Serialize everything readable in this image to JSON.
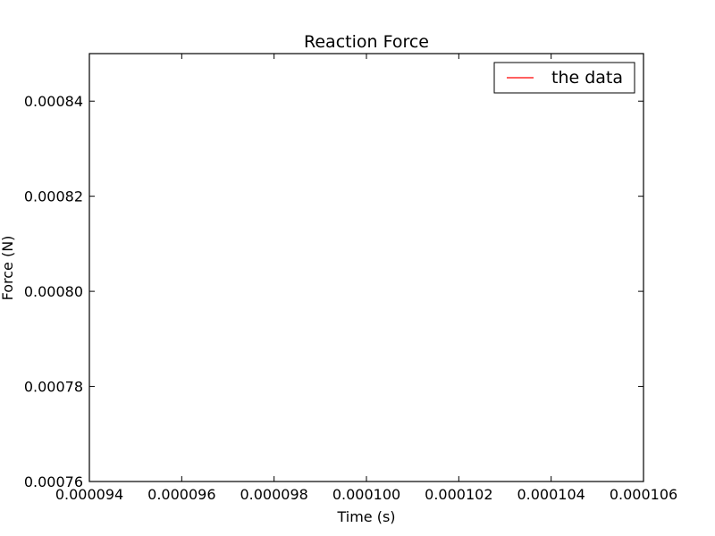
{
  "chart_data": {
    "type": "line",
    "title": "Reaction Force",
    "xlabel": "Time (s)",
    "ylabel": "Force (N)",
    "xlim": [
      9.4e-05,
      0.000106
    ],
    "ylim": [
      0.00076,
      0.00085
    ],
    "x_ticks": [
      {
        "value": 9.4e-05,
        "label": "0.000094"
      },
      {
        "value": 9.6e-05,
        "label": "0.000096"
      },
      {
        "value": 9.8e-05,
        "label": "0.000098"
      },
      {
        "value": 0.0001,
        "label": "0.000100"
      },
      {
        "value": 0.000102,
        "label": "0.000102"
      },
      {
        "value": 0.000104,
        "label": "0.000104"
      },
      {
        "value": 0.000106,
        "label": "0.000106"
      }
    ],
    "y_ticks": [
      {
        "value": 0.00076,
        "label": "0.00076"
      },
      {
        "value": 0.00078,
        "label": "0.00078"
      },
      {
        "value": 0.0008,
        "label": "0.00080"
      },
      {
        "value": 0.00082,
        "label": "0.00082"
      },
      {
        "value": 0.00084,
        "label": "0.00084"
      }
    ],
    "series": [
      {
        "name": "the data",
        "color": "#ff0000",
        "x": [],
        "y": []
      }
    ],
    "legend": {
      "position": "top-right"
    },
    "grid": false
  }
}
